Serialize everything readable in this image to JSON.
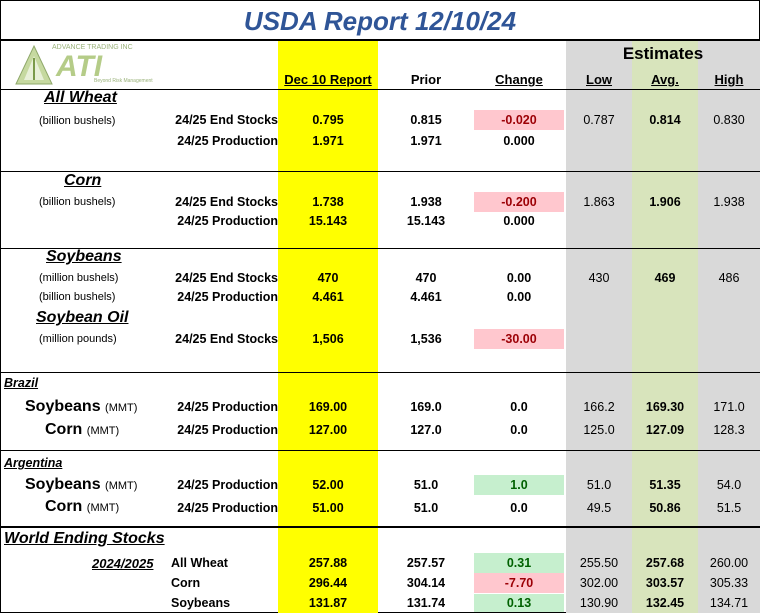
{
  "title": "USDA Report 12/10/24",
  "logo": {
    "small_text": "ADVANCE TRADING INC",
    "main_text": "ATI",
    "tagline": "Beyond Risk Management"
  },
  "headers": {
    "report": "Dec 10 Report",
    "prior": "Prior",
    "change": "Change",
    "estimates": "Estimates",
    "low": "Low",
    "avg": "Avg.",
    "high": "High"
  },
  "colors": {
    "yellow": "#ffff00",
    "estimates_bg": "#d9d9d9",
    "avg_bg": "#d8e4bc",
    "pink": "#ffc7ce",
    "green": "#c6efce",
    "title": "#2f5597"
  },
  "sections": {
    "wheat": {
      "name": "All Wheat",
      "unit": "(billion bushels)",
      "end_stocks": {
        "label": "24/25 End Stocks",
        "report": "0.795",
        "prior": "0.815",
        "change": "-0.020",
        "low": "0.787",
        "avg": "0.814",
        "high": "0.830"
      },
      "production": {
        "label": "24/25 Production",
        "report": "1.971",
        "prior": "1.971",
        "change": "0.000"
      }
    },
    "corn": {
      "name": "Corn",
      "unit": "(billion bushels)",
      "end_stocks": {
        "label": "24/25 End Stocks",
        "report": "1.738",
        "prior": "1.938",
        "change": "-0.200",
        "low": "1.863",
        "avg": "1.906",
        "high": "1.938"
      },
      "production": {
        "label": "24/25 Production",
        "report": "15.143",
        "prior": "15.143",
        "change": "0.000"
      }
    },
    "soybeans": {
      "name": "Soybeans",
      "unit_stocks": "(million bushels)",
      "unit_prod": "(billion bushels)",
      "end_stocks": {
        "label": "24/25 End Stocks",
        "report": "470",
        "prior": "470",
        "change": "0.00",
        "low": "430",
        "avg": "469",
        "high": "486"
      },
      "production": {
        "label": "24/25 Production",
        "report": "4.461",
        "prior": "4.461",
        "change": "0.00"
      }
    },
    "soyoil": {
      "name": "Soybean Oil",
      "unit": "(million pounds)",
      "end_stocks": {
        "label": "24/25 End Stocks",
        "report": "1,506",
        "prior": "1,536",
        "change": "-30.00"
      }
    },
    "brazil": {
      "name": "Brazil",
      "soybeans": {
        "name": "Soybeans",
        "unit": "(MMT)",
        "label": "24/25 Production",
        "report": "169.00",
        "prior": "169.0",
        "change": "0.0",
        "low": "166.2",
        "avg": "169.30",
        "high": "171.0"
      },
      "corn": {
        "name": "Corn",
        "unit": "(MMT)",
        "label": "24/25 Production",
        "report": "127.00",
        "prior": "127.0",
        "change": "0.0",
        "low": "125.0",
        "avg": "127.09",
        "high": "128.3"
      }
    },
    "argentina": {
      "name": "Argentina",
      "soybeans": {
        "name": "Soybeans",
        "unit": "(MMT)",
        "label": "24/25 Production",
        "report": "52.00",
        "prior": "51.0",
        "change": "1.0",
        "low": "51.0",
        "avg": "51.35",
        "high": "54.0"
      },
      "corn": {
        "name": "Corn",
        "unit": "(MMT)",
        "label": "24/25 Production",
        "report": "51.00",
        "prior": "51.0",
        "change": "0.0",
        "low": "49.5",
        "avg": "50.86",
        "high": "51.5"
      }
    },
    "world": {
      "name": "World Ending Stocks",
      "year": "2024/2025",
      "rows": [
        {
          "label": "All Wheat",
          "report": "257.88",
          "prior": "257.57",
          "change": "0.31",
          "low": "255.50",
          "avg": "257.68",
          "high": "260.00"
        },
        {
          "label": "Corn",
          "report": "296.44",
          "prior": "304.14",
          "change": "-7.70",
          "low": "302.00",
          "avg": "303.57",
          "high": "305.33"
        },
        {
          "label": "Soybeans",
          "report": "131.87",
          "prior": "131.74",
          "change": "0.13",
          "low": "130.90",
          "avg": "132.45",
          "high": "134.71"
        }
      ]
    }
  }
}
